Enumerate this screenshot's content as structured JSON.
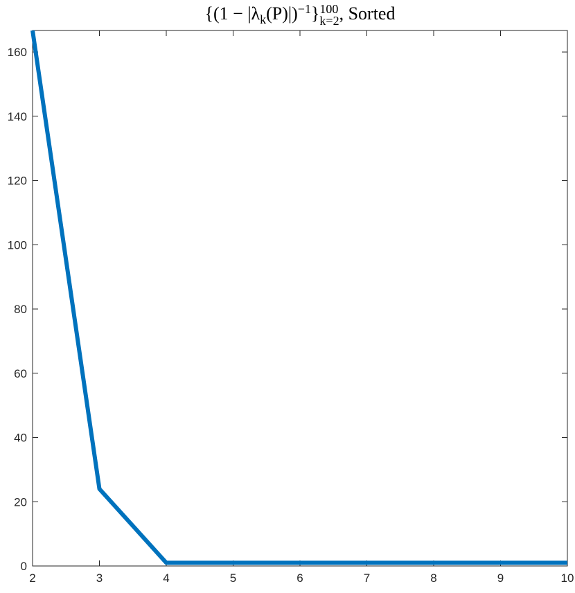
{
  "chart_data": {
    "type": "line",
    "title": [
      {
        "text": "{(1 − |λ",
        "script": "base"
      },
      {
        "text": "k",
        "script": "sub"
      },
      {
        "text": "(P)|)",
        "script": "base"
      },
      {
        "text": "−1",
        "script": "sup"
      },
      {
        "text": "}",
        "script": "base"
      },
      {
        "text": "100",
        "script": "sup"
      },
      {
        "text": "k=2",
        "script": "stacked-sub"
      },
      {
        "text": ", Sorted",
        "script": "base"
      }
    ],
    "x": [
      2,
      3,
      4,
      5,
      6,
      7,
      8,
      9,
      10
    ],
    "series": [
      {
        "color": "#0072bd",
        "values": [
          166.7,
          24,
          1,
          1,
          1,
          1,
          1,
          1,
          1
        ]
      }
    ],
    "xlim": [
      2,
      10
    ],
    "xticks": [
      2,
      3,
      4,
      5,
      6,
      7,
      8,
      9,
      10
    ],
    "ylim": [
      0,
      166.7
    ],
    "yticks": [
      0,
      20,
      40,
      60,
      80,
      100,
      120,
      140,
      160
    ],
    "grid": false
  }
}
